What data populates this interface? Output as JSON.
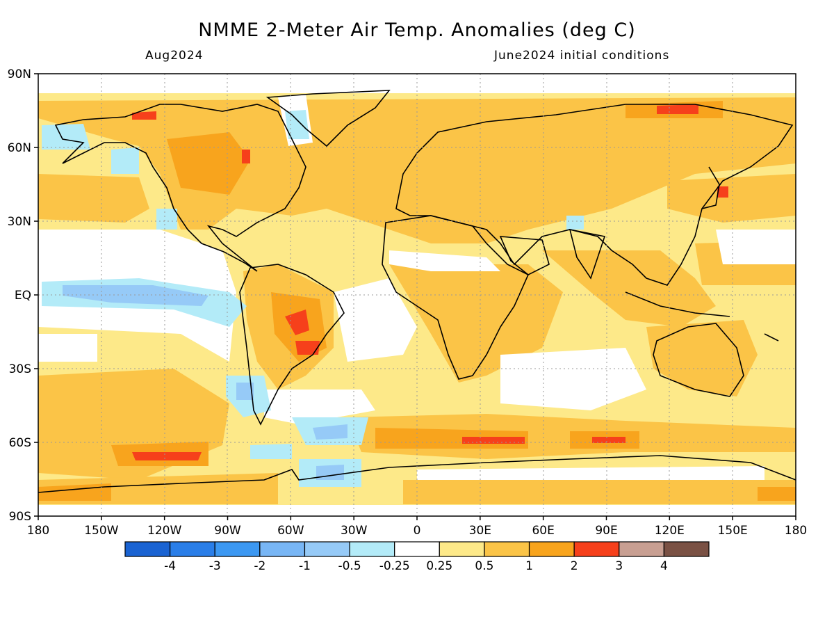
{
  "title": "NMME 2-Meter Air Temp. Anomalies (deg C)",
  "subtitle_left": "Aug2024",
  "subtitle_right": "June2024 initial conditions",
  "lat_labels": [
    "90N",
    "60N",
    "30N",
    "EQ",
    "30S",
    "60S",
    "90S"
  ],
  "lon_labels": [
    "180",
    "150W",
    "120W",
    "90W",
    "60W",
    "30W",
    "0",
    "30E",
    "60E",
    "90E",
    "120E",
    "150E",
    "180"
  ],
  "colorbar": {
    "colors": [
      "#1a63d2",
      "#2a7ee8",
      "#3c98f2",
      "#78b6f5",
      "#96caf7",
      "#b3ebf8",
      "#ffffff",
      "#fde989",
      "#fbc447",
      "#f8a41d",
      "#f6401b",
      "#c89f92",
      "#7a5144"
    ],
    "labels": [
      "-4",
      "-3",
      "-2",
      "-1",
      "-0.5",
      "-0.25",
      "0.25",
      "0.5",
      "1",
      "2",
      "3",
      "4"
    ]
  },
  "colors": {
    "ocean_neutral": "#ffffff",
    "weak_warm": "#fde989",
    "warm": "#fbc447",
    "strong_warm": "#f8a41d",
    "hot": "#f6401b",
    "weak_cool": "#b3ebf8",
    "cool": "#96caf7",
    "coastline": "#000000"
  }
}
